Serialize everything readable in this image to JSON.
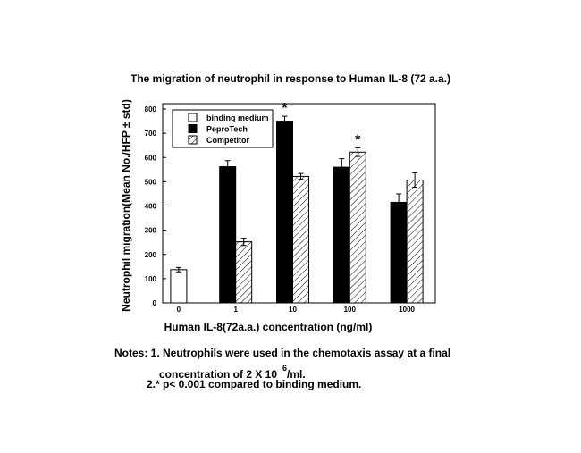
{
  "chart_data": {
    "type": "bar",
    "title": "The migration of neutrophil in response to Human IL-8 (72 a.a.)",
    "x_label": "Human IL-8(72a.a.)  concentration (ng/ml)",
    "y_label": "Neutrophil migration(Mean No./HFP ± std)",
    "categories": [
      "0",
      "1",
      "10",
      "100",
      "1000"
    ],
    "series": [
      {
        "name": "binding medium",
        "color": "#ffffff",
        "pattern": "none",
        "values": [
          137,
          null,
          null,
          null,
          null
        ],
        "errors": [
          9,
          null,
          null,
          null,
          null
        ]
      },
      {
        "name": "PeproTech",
        "color": "#000000",
        "pattern": "none",
        "values": [
          null,
          562,
          750,
          560,
          415
        ],
        "errors": [
          null,
          25,
          20,
          35,
          35
        ]
      },
      {
        "name": "Competitor",
        "color": "#ffffff",
        "pattern": "hatch",
        "values": [
          null,
          252,
          522,
          622,
          507
        ],
        "errors": [
          null,
          15,
          12,
          18,
          30
        ]
      }
    ],
    "annotations": [
      {
        "text": "*",
        "category": "10",
        "series": "PeproTech"
      },
      {
        "text": "*",
        "category": "100",
        "series": "Competitor"
      }
    ],
    "ylim": [
      0,
      800
    ],
    "yticks": [
      0,
      100,
      200,
      300,
      400,
      500,
      600,
      700,
      800
    ],
    "legend": "upper left"
  },
  "notes": {
    "line1": "Notes: 1. Neutrophils were used in the chemotaxis assay at a final",
    "line2_start": "concentration of 2 X 10",
    "line2_sup": "6",
    "line2_end": "/ml.",
    "line3": "2.* p< 0.001 compared to binding medium."
  }
}
